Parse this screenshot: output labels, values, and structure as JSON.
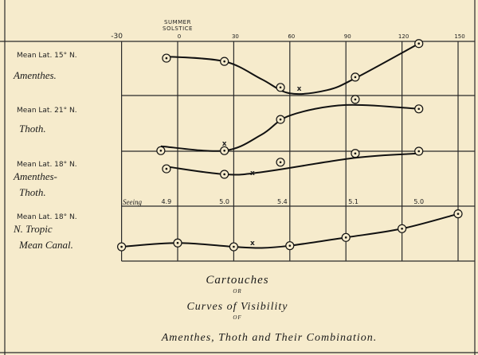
{
  "chart_data": {
    "type": "line",
    "title_lines": [
      "Cartouches",
      "or",
      "Curves of Visibility",
      "of",
      "Amenthes, Thoth and Their Combination."
    ],
    "top_annotation": [
      "Summer",
      "Solstice"
    ],
    "x_ticks": [
      "-30",
      "0",
      "30",
      "60",
      "90",
      "120",
      "150"
    ],
    "x_tick_values": [
      -30,
      0,
      30,
      60,
      90,
      120,
      150
    ],
    "xlim": [
      -30,
      150
    ],
    "grid": true,
    "y_scale": "relative visibility within each row (0 = low, 1 = high), unlabeled",
    "rows": [
      {
        "lat": "Mean Lat. 15° N.",
        "name_lines": [
          "Amenthes."
        ],
        "points": [
          [
            -6,
            0.69
          ],
          [
            25,
            0.63
          ],
          [
            55,
            0.15
          ],
          [
            95,
            0.34
          ],
          [
            129,
            0.96
          ]
        ],
        "x_mark": [
          65,
          0.13
        ],
        "curve": [
          [
            -6,
            0.72
          ],
          [
            25,
            0.63
          ],
          [
            45,
            0.3
          ],
          [
            60,
            0.04
          ],
          [
            80,
            0.1
          ],
          [
            95,
            0.32
          ],
          [
            129,
            0.96
          ]
        ]
      },
      {
        "lat": "Mean Lat. 21° N.",
        "name_lines": [
          "Thoth."
        ],
        "points": [
          [
            55,
            0.57
          ],
          [
            95,
            0.93
          ],
          [
            129,
            0.76
          ],
          [
            -9,
            0.01
          ],
          [
            25,
            0.01
          ]
        ],
        "x_mark": [
          25,
          0.14
        ],
        "curve": [
          [
            -9,
            0.09
          ],
          [
            25,
            0.01
          ],
          [
            45,
            0.3
          ],
          [
            60,
            0.64
          ],
          [
            90,
            0.83
          ],
          [
            129,
            0.76
          ]
        ]
      },
      {
        "lat": "Mean Lat. 18° N.",
        "name_lines": [
          "Amenthes-",
          "Thoth."
        ],
        "points": [
          [
            -6,
            0.68
          ],
          [
            25,
            0.58
          ],
          [
            55,
            0.8
          ],
          [
            95,
            0.96
          ],
          [
            129,
            1.0
          ]
        ],
        "x_mark": [
          40,
          0.61
        ],
        "curve": [
          [
            -6,
            0.72
          ],
          [
            25,
            0.58
          ],
          [
            45,
            0.62
          ],
          [
            95,
            0.88
          ],
          [
            129,
            0.96
          ]
        ]
      },
      {
        "lat": "Mean Lat. 18° N.",
        "name_lines": [
          "N. Tropic",
          "Mean Canal."
        ],
        "points": [
          [
            -30,
            0.26
          ],
          [
            0,
            0.33
          ],
          [
            30,
            0.26
          ],
          [
            60,
            0.28
          ],
          [
            90,
            0.43
          ],
          [
            120,
            0.59
          ],
          [
            150,
            0.86
          ]
        ],
        "x_mark": [
          40,
          0.33
        ],
        "curve": [
          [
            -30,
            0.26
          ],
          [
            0,
            0.33
          ],
          [
            30,
            0.26
          ],
          [
            45,
            0.24
          ],
          [
            60,
            0.28
          ],
          [
            90,
            0.43
          ],
          [
            120,
            0.59
          ],
          [
            150,
            0.86
          ]
        ]
      }
    ],
    "seeing": {
      "label": "Seeing",
      "values": [
        {
          "x": -6,
          "text": "4.9"
        },
        {
          "x": 25,
          "text": "5.0"
        },
        {
          "x": 56,
          "text": "5.4"
        },
        {
          "x": 94,
          "text": "5.1"
        },
        {
          "x": 129,
          "text": "5.0"
        }
      ]
    },
    "x_mark_symbol": "x",
    "point_symbol": "circled-dot"
  }
}
